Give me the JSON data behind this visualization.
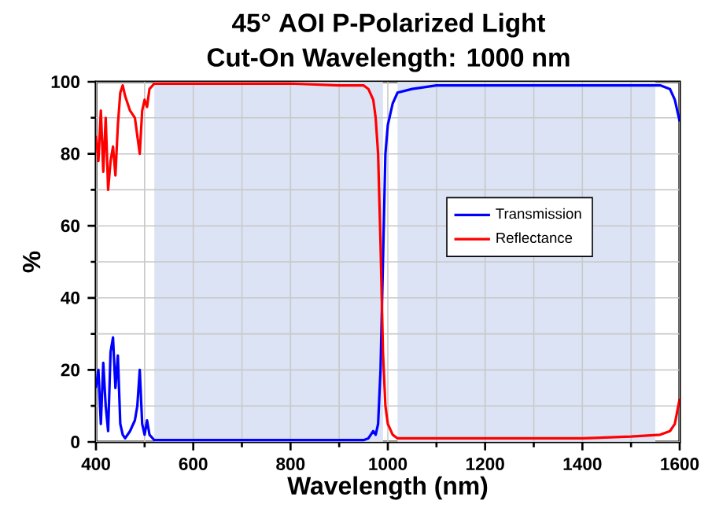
{
  "chart_data": {
    "type": "line",
    "title": "45° AOI P-Polarized Light",
    "subtitle": "Cut-On Wavelength: 1000 nm",
    "xlabel": "Wavelength (nm)",
    "ylabel": "%",
    "x": [
      400,
      405,
      410,
      415,
      420,
      425,
      430,
      435,
      440,
      445,
      450,
      455,
      460,
      470,
      480,
      485,
      490,
      495,
      500,
      505,
      510,
      520,
      600,
      700,
      800,
      900,
      950,
      960,
      970,
      975,
      980,
      985,
      990,
      995,
      1000,
      1010,
      1020,
      1050,
      1100,
      1200,
      1300,
      1400,
      1500,
      1560,
      1580,
      1590,
      1600
    ],
    "series": [
      {
        "name": "Transmission",
        "color": "#0000ff",
        "values": [
          15,
          20,
          5,
          22,
          10,
          3,
          25,
          29,
          15,
          24,
          5,
          2,
          1,
          3,
          6,
          10,
          20,
          5,
          2,
          6,
          2,
          0.5,
          0.5,
          0.5,
          0.5,
          0.5,
          0.5,
          1,
          3,
          2,
          5,
          20,
          50,
          80,
          88,
          94,
          97,
          98,
          99,
          99,
          99,
          99,
          99,
          99,
          98,
          95,
          89
        ]
      },
      {
        "name": "Reflectance",
        "color": "#ff0000",
        "values": [
          85,
          78,
          92,
          75,
          90,
          70,
          78,
          82,
          74,
          88,
          97,
          99,
          96,
          92,
          90,
          85,
          80,
          92,
          95,
          93,
          98,
          99.5,
          99.5,
          99.5,
          99.5,
          99,
          99,
          98,
          95,
          90,
          80,
          55,
          25,
          10,
          5,
          2,
          1,
          1,
          1,
          1,
          1,
          1,
          1.5,
          2,
          3,
          5,
          12
        ]
      }
    ],
    "xlim": [
      400,
      1600
    ],
    "ylim": [
      0,
      100
    ],
    "xticks": [
      400,
      600,
      800,
      1000,
      1200,
      1400,
      1600
    ],
    "yticks": [
      0,
      20,
      40,
      60,
      80,
      100
    ],
    "bands": [
      {
        "axis": "x",
        "from": 520,
        "to": 990,
        "color": "#dbe3f4"
      },
      {
        "axis": "x",
        "from": 1020,
        "to": 1550,
        "color": "#dbe3f4"
      }
    ],
    "grid": true,
    "legend": "right",
    "line_style": "solid",
    "marker": "none"
  }
}
